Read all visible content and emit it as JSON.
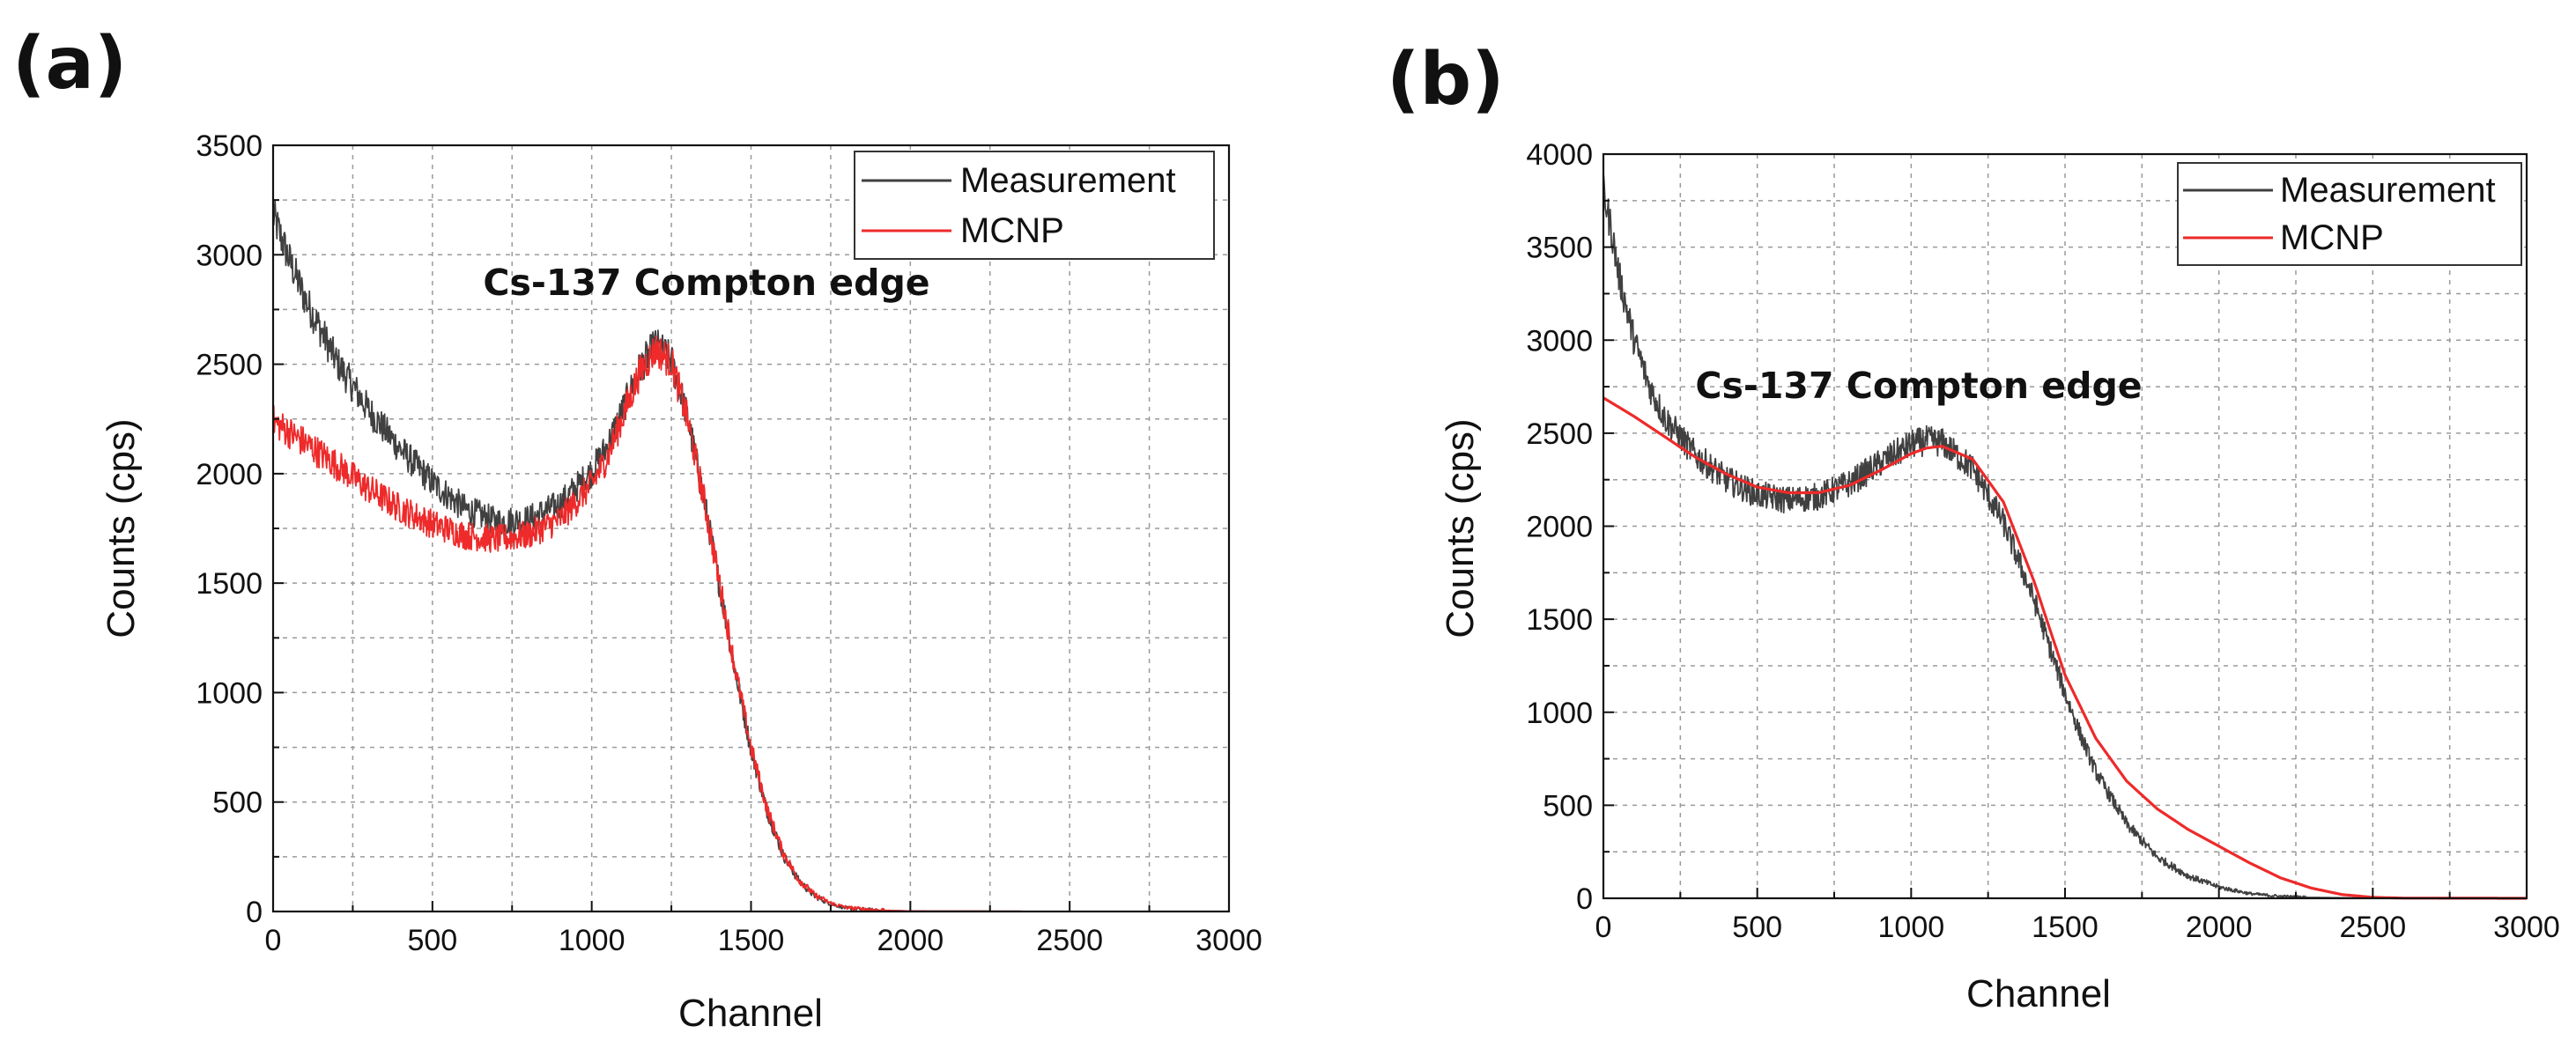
{
  "chart_data": [
    {
      "panel_label": "(a)",
      "type": "line",
      "title": "",
      "xlabel": "Channel",
      "ylabel": "Counts (cps)",
      "xlim": [
        0,
        3000
      ],
      "ylim": [
        0,
        3500
      ],
      "xticks": [
        0,
        500,
        1000,
        1500,
        2000,
        2500,
        3000
      ],
      "yticks": [
        0,
        500,
        1000,
        1500,
        2000,
        2500,
        3000,
        3500
      ],
      "grid": true,
      "legend_position": "top-right",
      "annotation": {
        "text": "Cs-137 Compton edge",
        "x": 1220,
        "y": 2880
      },
      "series": [
        {
          "name": "Measurement",
          "color": "#404040",
          "x": [
            0,
            50,
            100,
            200,
            300,
            400,
            500,
            600,
            700,
            800,
            900,
            1000,
            1050,
            1100,
            1150,
            1200,
            1250,
            1300,
            1350,
            1400,
            1450,
            1500,
            1550,
            1600,
            1650,
            1700,
            1750,
            1800,
            1900,
            2000,
            2500,
            3000
          ],
          "y": [
            3180,
            2980,
            2800,
            2510,
            2290,
            2110,
            1960,
            1840,
            1780,
            1790,
            1860,
            2010,
            2130,
            2300,
            2480,
            2590,
            2520,
            2260,
            1900,
            1500,
            1100,
            740,
            460,
            260,
            140,
            70,
            35,
            15,
            5,
            2,
            0,
            0
          ]
        },
        {
          "name": "MCNP",
          "color": "#ee2a2a",
          "x": [
            0,
            50,
            100,
            200,
            300,
            400,
            500,
            600,
            700,
            800,
            900,
            1000,
            1050,
            1100,
            1150,
            1200,
            1250,
            1300,
            1350,
            1400,
            1450,
            1500,
            1550,
            1600,
            1650,
            1700,
            1750,
            1800,
            1900,
            2000,
            2500,
            3000
          ],
          "y": [
            2240,
            2190,
            2140,
            2040,
            1930,
            1840,
            1770,
            1720,
            1700,
            1720,
            1790,
            1950,
            2080,
            2270,
            2460,
            2570,
            2510,
            2250,
            1900,
            1510,
            1110,
            750,
            470,
            270,
            145,
            75,
            38,
            18,
            6,
            2,
            0,
            0
          ]
        }
      ]
    },
    {
      "panel_label": "(b)",
      "type": "line",
      "title": "",
      "xlabel": "Channel",
      "ylabel": "Counts (cps)",
      "xlim": [
        0,
        3000
      ],
      "ylim": [
        0,
        4000
      ],
      "xticks": [
        0,
        500,
        1000,
        1500,
        2000,
        2500,
        3000
      ],
      "yticks": [
        0,
        500,
        1000,
        1500,
        2000,
        2500,
        3000,
        3500,
        4000
      ],
      "grid": true,
      "legend_position": "top-right",
      "annotation": {
        "text": "Cs-137 Compton edge",
        "x": 1000,
        "y": 2750
      },
      "series": [
        {
          "name": "Measurement",
          "color": "#404040",
          "x": [
            0,
            25,
            50,
            100,
            150,
            200,
            300,
            400,
            500,
            600,
            700,
            800,
            900,
            1000,
            1050,
            1100,
            1200,
            1300,
            1400,
            1500,
            1550,
            1600,
            1700,
            1800,
            1900,
            2000,
            2100,
            2200,
            2300,
            2500,
            3000
          ],
          "y": [
            3800,
            3600,
            3350,
            3000,
            2750,
            2580,
            2380,
            2250,
            2170,
            2140,
            2160,
            2230,
            2340,
            2440,
            2460,
            2450,
            2310,
            2020,
            1600,
            1100,
            880,
            680,
            400,
            220,
            120,
            60,
            25,
            10,
            4,
            1,
            0
          ]
        },
        {
          "name": "MCNP",
          "color": "#ee2a2a",
          "x": [
            0,
            50,
            100,
            200,
            300,
            400,
            500,
            600,
            700,
            800,
            900,
            1000,
            1050,
            1100,
            1200,
            1300,
            1400,
            1500,
            1600,
            1700,
            1800,
            1900,
            2000,
            2100,
            2200,
            2300,
            2400,
            2500,
            2600,
            3000
          ],
          "y": [
            2690,
            2640,
            2590,
            2480,
            2370,
            2280,
            2210,
            2180,
            2180,
            2220,
            2300,
            2390,
            2420,
            2430,
            2360,
            2130,
            1700,
            1200,
            860,
            630,
            480,
            370,
            280,
            190,
            110,
            55,
            20,
            5,
            1,
            0
          ]
        }
      ]
    }
  ]
}
